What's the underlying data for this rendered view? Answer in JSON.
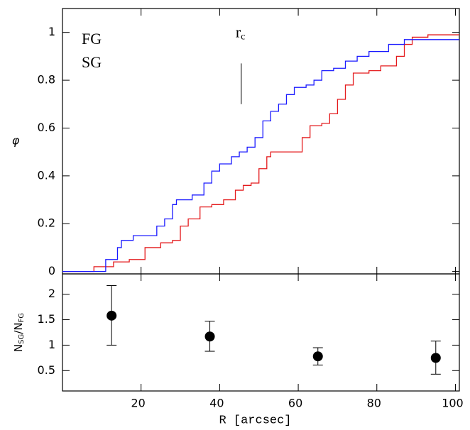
{
  "chart_data": [
    {
      "type": "line",
      "ylabel": "φ",
      "xlim": [
        0,
        101
      ],
      "ylim": [
        -0.01,
        1.1
      ],
      "xticks": [
        20,
        40,
        60,
        80,
        100
      ],
      "yticks": [
        0,
        0.2,
        0.4,
        0.6,
        0.8,
        1
      ],
      "legend": "upper left",
      "x_FG_SG_note": null,
      "series": [
        {
          "name": "FG",
          "color": "#e41a1c",
          "x": [
            0,
            8,
            13,
            17,
            21,
            25,
            28,
            30,
            32,
            35,
            38,
            41,
            44,
            46,
            48,
            50,
            52,
            53,
            58,
            61,
            63,
            66,
            68,
            70,
            72,
            74,
            78,
            81,
            85,
            87,
            89,
            93,
            101
          ],
          "values": [
            0,
            0.02,
            0.04,
            0.05,
            0.1,
            0.12,
            0.13,
            0.19,
            0.22,
            0.27,
            0.28,
            0.3,
            0.34,
            0.36,
            0.37,
            0.43,
            0.48,
            0.5,
            0.5,
            0.56,
            0.61,
            0.62,
            0.66,
            0.72,
            0.78,
            0.83,
            0.84,
            0.86,
            0.9,
            0.95,
            0.98,
            0.99,
            0.99
          ]
        },
        {
          "name": "SG",
          "color": "#1a1aff",
          "x": [
            0,
            10,
            11,
            14,
            15,
            18,
            24,
            26,
            28,
            29,
            33,
            36,
            38,
            40,
            43,
            45,
            47,
            49,
            51,
            53,
            55,
            57,
            59,
            62,
            64,
            66,
            69,
            72,
            75,
            78,
            83,
            87,
            95,
            101
          ],
          "values": [
            0,
            0,
            0.05,
            0.1,
            0.13,
            0.15,
            0.19,
            0.22,
            0.28,
            0.3,
            0.32,
            0.37,
            0.42,
            0.45,
            0.48,
            0.5,
            0.52,
            0.56,
            0.63,
            0.67,
            0.7,
            0.74,
            0.77,
            0.78,
            0.8,
            0.84,
            0.85,
            0.88,
            0.9,
            0.92,
            0.95,
            0.97,
            0.97,
            0.97
          ]
        }
      ],
      "annotation": {
        "text": "r",
        "sub": "c",
        "x": 45.5,
        "y_top": 0.9,
        "y_bottom": 0.7
      }
    },
    {
      "type": "scatter",
      "xlabel": "R [arcsec]",
      "ylabel": [
        "N",
        "SG",
        "/N",
        "FG"
      ],
      "xlim": [
        0,
        101
      ],
      "ylim": [
        0.1,
        2.4
      ],
      "xticks": [
        20,
        40,
        60,
        80,
        100
      ],
      "yticks": [
        0.5,
        1,
        1.5,
        2
      ],
      "color": "#000000",
      "x": [
        12.5,
        37.5,
        65,
        95
      ],
      "values": [
        1.58,
        1.17,
        0.78,
        0.75
      ],
      "upper": [
        2.17,
        1.47,
        0.95,
        1.08
      ],
      "lower": [
        1.0,
        0.88,
        0.61,
        0.43
      ]
    }
  ]
}
